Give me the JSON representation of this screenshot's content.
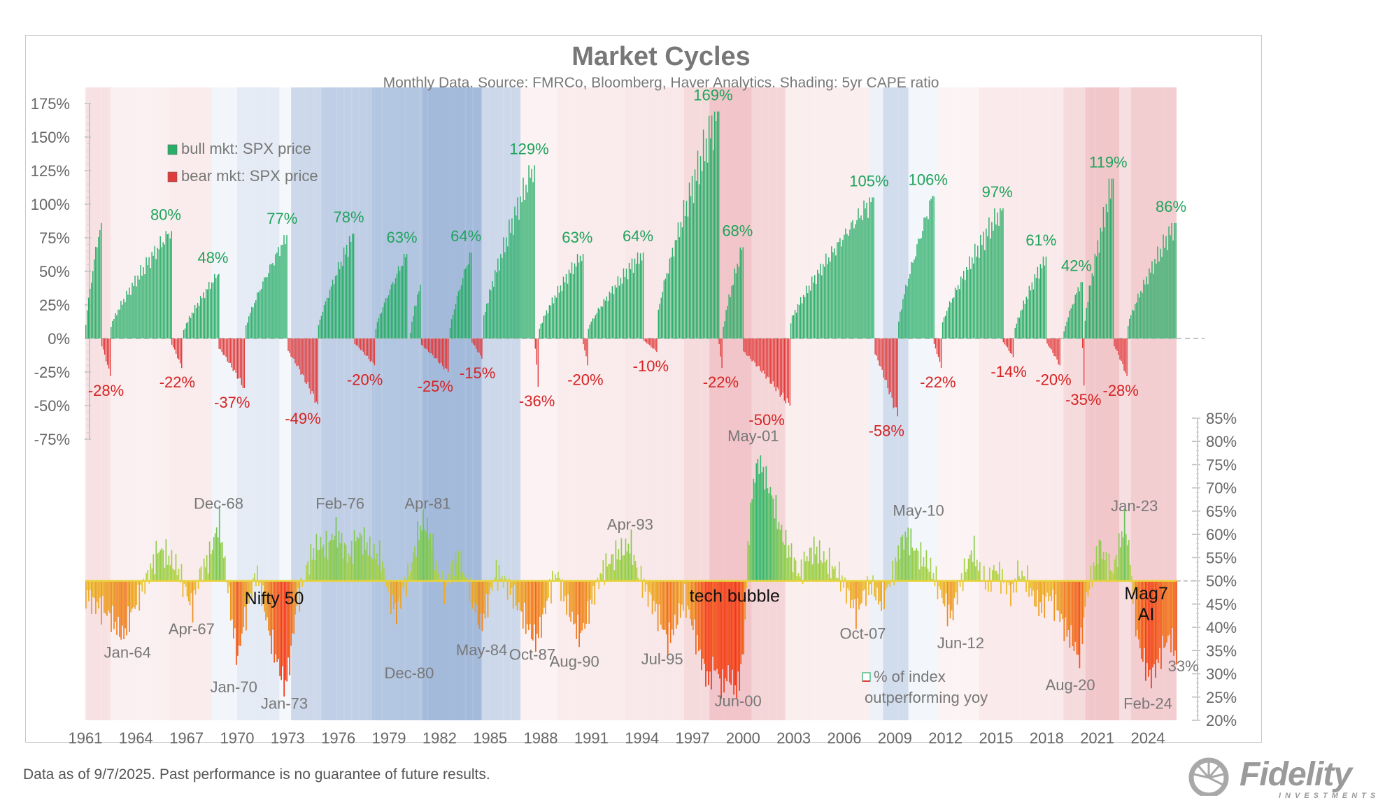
{
  "chart_data": {
    "type": "bar",
    "title": "Market Cycles",
    "subtitle": "Monthly Data.  Source:  FMRCo, Bloomberg, Haver Analytics.  Shading: 5yr CAPE ratio",
    "x_ticks": [
      "1961",
      "1964",
      "1967",
      "1970",
      "1973",
      "1976",
      "1979",
      "1982",
      "1985",
      "1988",
      "1991",
      "1994",
      "1997",
      "2000",
      "2003",
      "2006",
      "2009",
      "2012",
      "2015",
      "2018",
      "2021",
      "2024"
    ],
    "xlim": [
      1961.0,
      2025.7
    ],
    "top_panel": {
      "y_ticks": [
        "175%",
        "150%",
        "125%",
        "100%",
        "75%",
        "50%",
        "25%",
        "0%",
        "-25%",
        "-50%",
        "-75%"
      ],
      "ylim": [
        -75,
        175
      ],
      "legend": {
        "position": "top-left",
        "bull": "bull mkt: SPX price",
        "bear": "bear mkt: SPX price",
        "bull_color": "#22a866",
        "bear_color": "#e53935"
      },
      "bull_markets": [
        {
          "start": 1961.0,
          "end": 1961.95,
          "peak": 86,
          "label": ""
        },
        {
          "start": 1962.5,
          "end": 1966.1,
          "peak": 80,
          "label": "80%"
        },
        {
          "start": 1966.8,
          "end": 1968.9,
          "peak": 48,
          "label": "48%"
        },
        {
          "start": 1970.5,
          "end": 1973.0,
          "peak": 77,
          "label": "77%"
        },
        {
          "start": 1974.8,
          "end": 1976.95,
          "peak": 78,
          "label": "78%"
        },
        {
          "start": 1978.2,
          "end": 1980.1,
          "peak": 63,
          "label": "63%"
        },
        {
          "start": 1980.25,
          "end": 1980.9,
          "peak": 40,
          "label": ""
        },
        {
          "start": 1982.6,
          "end": 1983.9,
          "peak": 64,
          "label": "64%"
        },
        {
          "start": 1984.6,
          "end": 1987.65,
          "peak": 129,
          "label": "129%"
        },
        {
          "start": 1987.9,
          "end": 1990.5,
          "peak": 63,
          "label": "63%"
        },
        {
          "start": 1990.8,
          "end": 1994.1,
          "peak": 64,
          "label": "64%"
        },
        {
          "start": 1994.95,
          "end": 1998.55,
          "peak": 169,
          "label": "169%"
        },
        {
          "start": 1998.8,
          "end": 2000.0,
          "peak": 68,
          "label": "68%"
        },
        {
          "start": 2002.8,
          "end": 2007.8,
          "peak": 105,
          "label": "105%"
        },
        {
          "start": 2009.2,
          "end": 2011.3,
          "peak": 106,
          "label": "106%"
        },
        {
          "start": 2011.8,
          "end": 2015.4,
          "peak": 97,
          "label": "97%"
        },
        {
          "start": 2016.1,
          "end": 2018.0,
          "peak": 61,
          "label": "61%"
        },
        {
          "start": 2019.0,
          "end": 2020.1,
          "peak": 42,
          "label": "42%"
        },
        {
          "start": 2020.25,
          "end": 2021.98,
          "peak": 119,
          "label": "119%"
        },
        {
          "start": 2022.8,
          "end": 2025.7,
          "peak": 86,
          "label": "86%"
        }
      ],
      "bear_markets": [
        {
          "start": 1961.95,
          "end": 1962.5,
          "trough": -28,
          "label": "-28%"
        },
        {
          "start": 1966.1,
          "end": 1966.8,
          "trough": -22,
          "label": "-22%"
        },
        {
          "start": 1968.9,
          "end": 1970.5,
          "trough": -37,
          "label": "-37%"
        },
        {
          "start": 1973.0,
          "end": 1974.8,
          "trough": -49,
          "label": "-49%"
        },
        {
          "start": 1976.95,
          "end": 1978.2,
          "trough": -20,
          "label": "-20%"
        },
        {
          "start": 1980.9,
          "end": 1982.6,
          "trough": -25,
          "label": "-25%"
        },
        {
          "start": 1983.9,
          "end": 1984.6,
          "trough": -15,
          "label": "-15%"
        },
        {
          "start": 1987.65,
          "end": 1987.9,
          "trough": -36,
          "label": "-36%"
        },
        {
          "start": 1990.5,
          "end": 1990.8,
          "trough": -20,
          "label": "-20%"
        },
        {
          "start": 1994.1,
          "end": 1994.95,
          "trough": -10,
          "label": "-10%"
        },
        {
          "start": 1998.55,
          "end": 1998.8,
          "trough": -22,
          "label": "-22%"
        },
        {
          "start": 2000.0,
          "end": 2002.8,
          "trough": -50,
          "label": "-50%"
        },
        {
          "start": 2007.8,
          "end": 2009.2,
          "trough": -58,
          "label": "-58%"
        },
        {
          "start": 2011.3,
          "end": 2011.8,
          "trough": -22,
          "label": "-22%"
        },
        {
          "start": 2015.4,
          "end": 2016.1,
          "trough": -14,
          "label": "-14%"
        },
        {
          "start": 2018.0,
          "end": 2018.8,
          "trough": -20,
          "label": "-20%"
        },
        {
          "start": 2020.1,
          "end": 2020.25,
          "trough": -35,
          "label": "-35%"
        },
        {
          "start": 2021.98,
          "end": 2022.8,
          "trough": -28,
          "label": "-28%"
        }
      ]
    },
    "bottom_panel": {
      "y_ticks": [
        "85%",
        "80%",
        "75%",
        "70%",
        "65%",
        "60%",
        "55%",
        "50%",
        "45%",
        "40%",
        "35%",
        "30%",
        "25%",
        "20%"
      ],
      "ylim": [
        20,
        85
      ],
      "legend": "% of index\noutperforming yoy",
      "baseline": 50,
      "series": [
        [
          1961.0,
          47
        ],
        [
          1961.5,
          45
        ],
        [
          1962.0,
          44
        ],
        [
          1962.5,
          42
        ],
        [
          1963.2,
          38
        ],
        [
          1963.7,
          43
        ],
        [
          1964.3,
          48
        ],
        [
          1964.9,
          53
        ],
        [
          1965.3,
          57
        ],
        [
          1965.9,
          55
        ],
        [
          1966.4,
          53
        ],
        [
          1966.9,
          48
        ],
        [
          1967.3,
          44
        ],
        [
          1967.7,
          51
        ],
        [
          1968.3,
          55
        ],
        [
          1968.9,
          63
        ],
        [
          1969.3,
          52
        ],
        [
          1969.7,
          40
        ],
        [
          1970.0,
          33
        ],
        [
          1970.3,
          40
        ],
        [
          1970.7,
          46
        ],
        [
          1971.1,
          52
        ],
        [
          1971.5,
          46
        ],
        [
          1971.9,
          38
        ],
        [
          1972.4,
          32
        ],
        [
          1972.8,
          27
        ],
        [
          1973.1,
          33
        ],
        [
          1973.5,
          45
        ],
        [
          1973.9,
          50
        ],
        [
          1974.3,
          55
        ],
        [
          1974.8,
          58
        ],
        [
          1975.3,
          57
        ],
        [
          1975.8,
          61
        ],
        [
          1976.2,
          58
        ],
        [
          1976.6,
          55
        ],
        [
          1977.1,
          60
        ],
        [
          1977.6,
          58
        ],
        [
          1978.0,
          56
        ],
        [
          1978.5,
          55
        ],
        [
          1979.0,
          47
        ],
        [
          1979.4,
          43
        ],
        [
          1979.8,
          48
        ],
        [
          1980.2,
          52
        ],
        [
          1980.7,
          60
        ],
        [
          1981.0,
          63
        ],
        [
          1981.4,
          60
        ],
        [
          1981.8,
          53
        ],
        [
          1982.3,
          48
        ],
        [
          1982.7,
          53
        ],
        [
          1983.1,
          55
        ],
        [
          1983.6,
          50
        ],
        [
          1984.0,
          45
        ],
        [
          1984.4,
          40
        ],
        [
          1984.9,
          46
        ],
        [
          1985.3,
          52
        ],
        [
          1985.8,
          50
        ],
        [
          1986.3,
          47
        ],
        [
          1986.7,
          44
        ],
        [
          1987.2,
          40
        ],
        [
          1987.7,
          37
        ],
        [
          1988.1,
          42
        ],
        [
          1988.5,
          48
        ],
        [
          1988.9,
          52
        ],
        [
          1989.3,
          47
        ],
        [
          1989.8,
          42
        ],
        [
          1990.3,
          38
        ],
        [
          1990.7,
          42
        ],
        [
          1991.1,
          47
        ],
        [
          1991.6,
          52
        ],
        [
          1992.0,
          54
        ],
        [
          1992.5,
          56
        ],
        [
          1993.0,
          57
        ],
        [
          1993.3,
          58
        ],
        [
          1993.7,
          52
        ],
        [
          1994.2,
          48
        ],
        [
          1994.6,
          45
        ],
        [
          1995.0,
          42
        ],
        [
          1995.5,
          37
        ],
        [
          1996.0,
          41
        ],
        [
          1996.5,
          46
        ],
        [
          1997.0,
          40
        ],
        [
          1997.5,
          33
        ],
        [
          1997.9,
          28
        ],
        [
          1998.3,
          32
        ],
        [
          1998.7,
          27
        ],
        [
          1999.1,
          30
        ],
        [
          1999.6,
          26
        ],
        [
          2000.0,
          35
        ],
        [
          2000.3,
          60
        ],
        [
          2000.6,
          72
        ],
        [
          2000.9,
          76
        ],
        [
          2001.3,
          72
        ],
        [
          2001.7,
          68
        ],
        [
          2002.1,
          62
        ],
        [
          2002.5,
          58
        ],
        [
          2002.9,
          55
        ],
        [
          2003.3,
          51
        ],
        [
          2003.7,
          55
        ],
        [
          2004.2,
          57
        ],
        [
          2004.7,
          55
        ],
        [
          2005.2,
          53
        ],
        [
          2005.7,
          51
        ],
        [
          2006.2,
          47
        ],
        [
          2006.7,
          43
        ],
        [
          2007.1,
          47
        ],
        [
          2007.6,
          49
        ],
        [
          2008.1,
          45
        ],
        [
          2008.5,
          48
        ],
        [
          2008.9,
          52
        ],
        [
          2009.3,
          58
        ],
        [
          2009.7,
          60
        ],
        [
          2010.1,
          57
        ],
        [
          2010.5,
          55
        ],
        [
          2010.9,
          54
        ],
        [
          2011.4,
          50
        ],
        [
          2011.8,
          46
        ],
        [
          2012.3,
          42
        ],
        [
          2012.7,
          48
        ],
        [
          2013.1,
          52
        ],
        [
          2013.6,
          57
        ],
        [
          2014.0,
          52
        ],
        [
          2014.5,
          49
        ],
        [
          2014.9,
          53
        ],
        [
          2015.4,
          50
        ],
        [
          2015.9,
          47
        ],
        [
          2016.3,
          52
        ],
        [
          2016.8,
          50
        ],
        [
          2017.2,
          46
        ],
        [
          2017.7,
          44
        ],
        [
          2018.1,
          47
        ],
        [
          2018.6,
          44
        ],
        [
          2019.0,
          40
        ],
        [
          2019.5,
          37
        ],
        [
          2019.9,
          33
        ],
        [
          2020.3,
          46
        ],
        [
          2020.7,
          52
        ],
        [
          2021.1,
          58
        ],
        [
          2021.5,
          54
        ],
        [
          2021.9,
          52
        ],
        [
          2022.3,
          58
        ],
        [
          2022.6,
          63
        ],
        [
          2022.9,
          55
        ],
        [
          2023.2,
          42
        ],
        [
          2023.5,
          35
        ],
        [
          2023.9,
          31
        ],
        [
          2024.1,
          29
        ],
        [
          2024.5,
          32
        ],
        [
          2024.9,
          36
        ],
        [
          2025.3,
          38
        ],
        [
          2025.7,
          33
        ]
      ]
    },
    "shading": {
      "label": "5yr CAPE ratio",
      "bands": [
        [
          1961.0,
          1962.5,
          "r",
          0.18
        ],
        [
          1962.5,
          1966.0,
          "r",
          0.09
        ],
        [
          1966.0,
          1968.5,
          "r",
          0.12
        ],
        [
          1968.5,
          1970.0,
          "b",
          0.08
        ],
        [
          1970.0,
          1972.5,
          "b",
          0.16
        ],
        [
          1972.5,
          1973.2,
          "b",
          0.06
        ],
        [
          1973.2,
          1975.0,
          "b",
          0.3
        ],
        [
          1975.0,
          1978.0,
          "b",
          0.38
        ],
        [
          1978.0,
          1981.0,
          "b",
          0.46
        ],
        [
          1981.0,
          1984.5,
          "b",
          0.55
        ],
        [
          1984.5,
          1986.8,
          "b",
          0.3
        ],
        [
          1986.8,
          1989.0,
          "r",
          0.08
        ],
        [
          1989.0,
          1993.0,
          "r",
          0.12
        ],
        [
          1993.0,
          1996.5,
          "r",
          0.14
        ],
        [
          1996.5,
          1998.0,
          "r",
          0.22
        ],
        [
          1998.0,
          2000.5,
          "r",
          0.35
        ],
        [
          2000.5,
          2002.5,
          "r",
          0.25
        ],
        [
          2002.5,
          2007.5,
          "r",
          0.1
        ],
        [
          2007.5,
          2008.3,
          "b",
          0.1
        ],
        [
          2008.3,
          2009.8,
          "b",
          0.28
        ],
        [
          2009.8,
          2011.5,
          "b",
          0.07
        ],
        [
          2011.5,
          2014.0,
          "r",
          0.07
        ],
        [
          2014.0,
          2019.0,
          "r",
          0.13
        ],
        [
          2019.0,
          2020.3,
          "r",
          0.22
        ],
        [
          2020.3,
          2022.3,
          "r",
          0.34
        ],
        [
          2022.3,
          2023.0,
          "r",
          0.2
        ],
        [
          2023.0,
          2025.7,
          "r",
          0.3
        ]
      ]
    },
    "annotations": [
      {
        "text": "Dec-68",
        "x": 1968.9,
        "y": 65.5
      },
      {
        "text": "Feb-76",
        "x": 1976.1,
        "y": 65.5
      },
      {
        "text": "Apr-81",
        "x": 1981.3,
        "y": 65.5
      },
      {
        "text": "Apr-93",
        "x": 1993.3,
        "y": 61
      },
      {
        "text": "May-01",
        "x": 2000.6,
        "y": 80
      },
      {
        "text": "May-10",
        "x": 2010.4,
        "y": 64
      },
      {
        "text": "Jan-23",
        "x": 2023.2,
        "y": 65
      },
      {
        "text": "Jan-64",
        "x": 1963.5,
        "y": 33.5
      },
      {
        "text": "Apr-67",
        "x": 1967.3,
        "y": 38.5
      },
      {
        "text": "Jan-70",
        "x": 1969.8,
        "y": 26
      },
      {
        "text": "Jan-73",
        "x": 1972.8,
        "y": 22.5
      },
      {
        "text": "Dec-80",
        "x": 1980.2,
        "y": 29
      },
      {
        "text": "May-84",
        "x": 1984.5,
        "y": 34
      },
      {
        "text": "Oct-87",
        "x": 1987.5,
        "y": 33
      },
      {
        "text": "Aug-90",
        "x": 1990.0,
        "y": 31.5
      },
      {
        "text": "Jul-95",
        "x": 1995.2,
        "y": 32
      },
      {
        "text": "Jun-00",
        "x": 1999.7,
        "y": 23
      },
      {
        "text": "Oct-07",
        "x": 2007.1,
        "y": 37.5
      },
      {
        "text": "Jun-12",
        "x": 2012.9,
        "y": 35.5
      },
      {
        "text": "Aug-20",
        "x": 2019.4,
        "y": 26.5
      },
      {
        "text": "Feb-24",
        "x": 2024.0,
        "y": 22.5
      },
      {
        "text": "33%",
        "x": 2026.1,
        "y": 30.5
      }
    ],
    "callouts": [
      {
        "text": "Nifty 50",
        "x": 1972.2,
        "y": 45
      },
      {
        "text": "tech bubble",
        "x": 1999.5,
        "y": 45.5
      },
      {
        "text": "Mag7",
        "x": 2023.9,
        "y": 46
      },
      {
        "text": "AI",
        "x": 2023.9,
        "y": 41.5
      }
    ]
  },
  "footnote": "Data as of 9/7/2025. Past performance is no guarantee of future results.",
  "logo": {
    "name": "Fidelity",
    "sub": "INVESTMENTS"
  }
}
